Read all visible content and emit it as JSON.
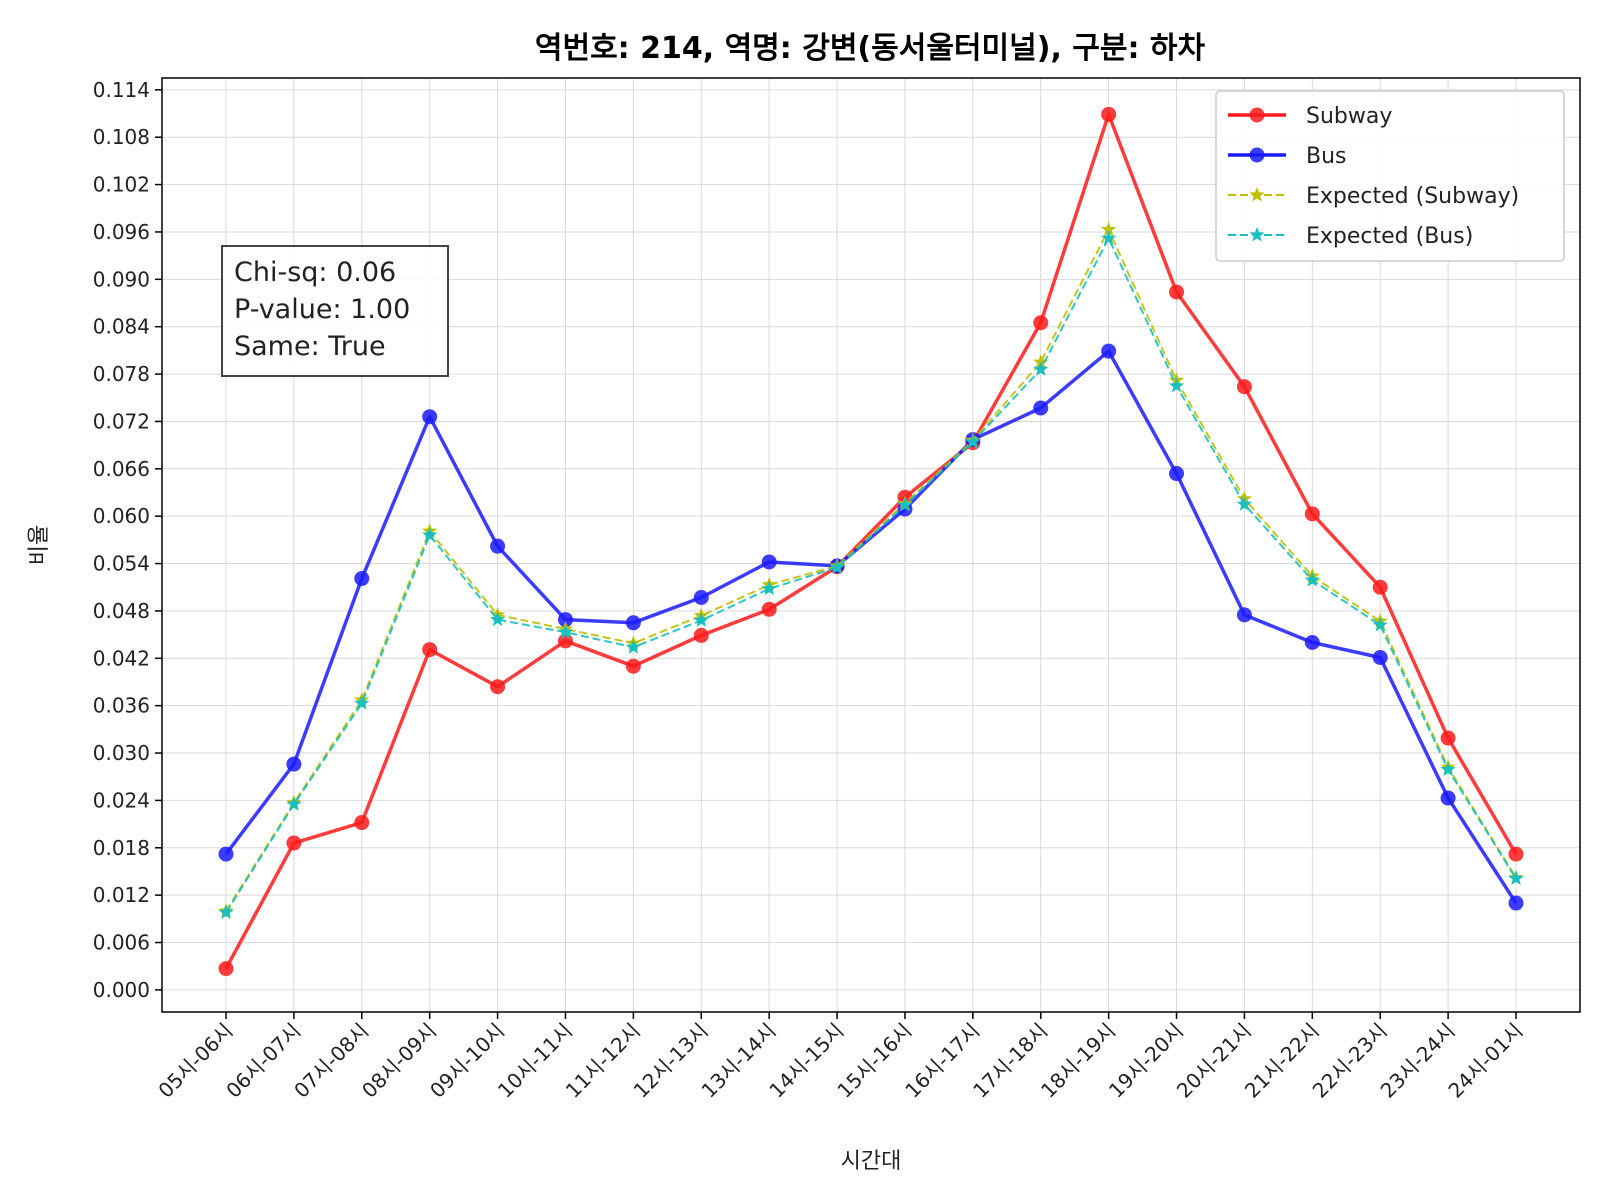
{
  "chart_data": {
    "type": "line",
    "title": "역번호: 214, 역명: 강변(동서울터미널), 구분: 하차",
    "xlabel": "시간대",
    "ylabel": "비율",
    "ylim": [
      -0.0028,
      0.1155
    ],
    "yticks": [
      "0.000",
      "0.006",
      "0.012",
      "0.018",
      "0.024",
      "0.030",
      "0.036",
      "0.042",
      "0.048",
      "0.054",
      "0.060",
      "0.066",
      "0.072",
      "0.078",
      "0.084",
      "0.090",
      "0.096",
      "0.102",
      "0.108",
      "0.114"
    ],
    "grid": true,
    "legend_position": "top-right",
    "categories": [
      "05시-06시",
      "06시-07시",
      "07시-08시",
      "08시-09시",
      "09시-10시",
      "10시-11시",
      "11시-12시",
      "12시-13시",
      "13시-14시",
      "14시-15시",
      "15시-16시",
      "16시-17시",
      "17시-18시",
      "18시-19시",
      "19시-20시",
      "20시-21시",
      "21시-22시",
      "22시-23시",
      "23시-24시",
      "24시-01시"
    ],
    "series": [
      {
        "name": "Subway",
        "color": "#ff1a1a",
        "style": "solid",
        "marker": "circle",
        "values": [
          0.0027,
          0.0186,
          0.0212,
          0.0431,
          0.0384,
          0.0442,
          0.041,
          0.0449,
          0.0482,
          0.0536,
          0.0624,
          0.0693,
          0.0845,
          0.1109,
          0.0884,
          0.0764,
          0.0603,
          0.051,
          0.0319,
          0.0172
        ]
      },
      {
        "name": "Bus",
        "color": "#1a1aff",
        "style": "solid",
        "marker": "circle",
        "values": [
          0.0172,
          0.0286,
          0.0521,
          0.0726,
          0.0562,
          0.0469,
          0.0465,
          0.0497,
          0.0542,
          0.0537,
          0.0609,
          0.0697,
          0.0737,
          0.0809,
          0.0654,
          0.0475,
          0.044,
          0.0421,
          0.0243,
          0.011
        ]
      },
      {
        "name": "Expected (Subway)",
        "color": "#bfbf00",
        "style": "dashed",
        "marker": "star",
        "values": [
          0.01,
          0.0237,
          0.0367,
          0.0581,
          0.0475,
          0.0457,
          0.0439,
          0.0474,
          0.0513,
          0.0537,
          0.0616,
          0.0696,
          0.0795,
          0.0963,
          0.0772,
          0.0622,
          0.0524,
          0.0467,
          0.0282,
          0.0142
        ]
      },
      {
        "name": "Expected (Bus)",
        "color": "#17bfbf",
        "style": "dashed",
        "marker": "star",
        "values": [
          0.0098,
          0.0235,
          0.0363,
          0.0576,
          0.0469,
          0.0453,
          0.0434,
          0.0468,
          0.0508,
          0.0535,
          0.0614,
          0.0694,
          0.0786,
          0.0952,
          0.0765,
          0.0615,
          0.0519,
          0.0462,
          0.0279,
          0.0141
        ]
      }
    ],
    "stats_box": {
      "chi_sq": "Chi-sq: 0.06",
      "p_value": "P-value: 1.00",
      "same": "Same: True"
    }
  }
}
